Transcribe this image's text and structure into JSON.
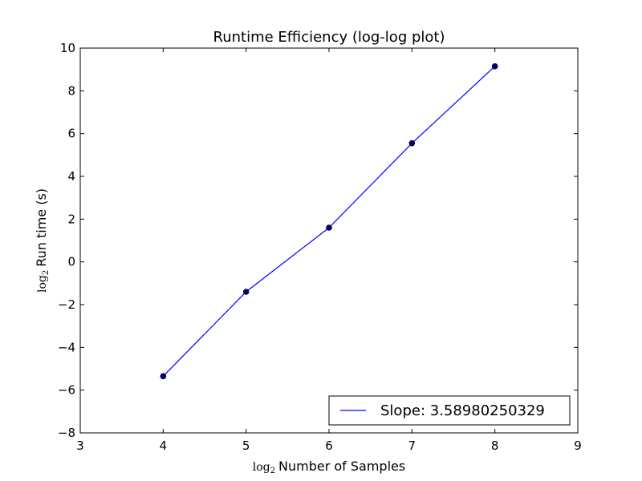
{
  "chart_data": {
    "type": "line",
    "title": "Runtime Efficiency (log-log plot)",
    "xlabel": {
      "math_prefix": "log",
      "math_subscript": "2",
      "text": "Number of Samples"
    },
    "ylabel": {
      "math_prefix": "log",
      "math_subscript": "2",
      "text": "Run time (s)"
    },
    "xlim": [
      3,
      9
    ],
    "ylim": [
      -8,
      10
    ],
    "xticks": [
      3,
      4,
      5,
      6,
      7,
      8,
      9
    ],
    "yticks": [
      -8,
      -6,
      -4,
      -2,
      0,
      2,
      4,
      6,
      8,
      10
    ],
    "xtick_labels": [
      "3",
      "4",
      "5",
      "6",
      "7",
      "8",
      "9"
    ],
    "ytick_labels": [
      "−8",
      "−6",
      "−4",
      "−2",
      "0",
      "2",
      "4",
      "6",
      "8",
      "10"
    ],
    "grid": false,
    "legend_position": "bottom-right",
    "series": [
      {
        "name": "Slope: 3.58980250329",
        "color": "#0000ff",
        "marker_color": "#00007f",
        "x": [
          4,
          5,
          6,
          7,
          8
        ],
        "y": [
          -5.35,
          -1.4,
          1.6,
          5.55,
          9.15
        ]
      }
    ]
  }
}
